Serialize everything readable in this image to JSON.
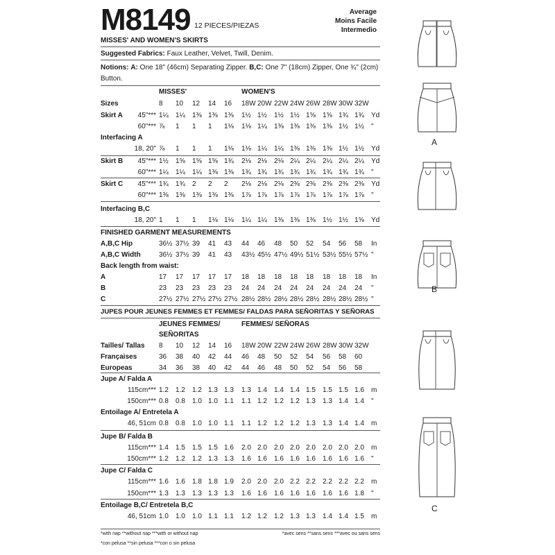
{
  "header": {
    "pattern_number": "M8149",
    "pieces": "12 PIECES/PIEZAS",
    "difficulty": [
      "Average",
      "Moins Facile",
      "Intermedio"
    ],
    "subtitle": "MISSES' AND WOMEN'S SKIRTS",
    "fabrics_label": "Suggested Fabrics:",
    "fabrics": "Faux Leather, Velvet, Twill, Denim.",
    "notions_label": "Notions:",
    "notions_a_label": "A:",
    "notions_a": "One 18\" (46cm) Separating Zipper.",
    "notions_bc_label": "B,C:",
    "notions_bc": "One 7\" (18cm) Zipper, One ¾\" (2cm)",
    "notions_cont": "Button."
  },
  "english": {
    "group_misses": "MISSES'",
    "group_womens": "WOMEN'S",
    "rows": [
      {
        "label": "Sizes",
        "sub": "",
        "values": [
          "8",
          "10",
          "12",
          "14",
          "16",
          "18W",
          "20W",
          "22W",
          "24W",
          "26W",
          "28W",
          "30W",
          "32W"
        ],
        "unit": ""
      },
      {
        "label": "Skirt A",
        "sub": "45\"***",
        "values": [
          "1¼",
          "1¼",
          "1⅜",
          "1⅜",
          "1⅜",
          "1½",
          "1½",
          "1½",
          "1½",
          "1⅝",
          "1⅝",
          "1¾",
          "1¾"
        ],
        "unit": "Yd"
      },
      {
        "label": "",
        "sub": "60\"***",
        "values": [
          "⅞",
          "1",
          "1",
          "1",
          "1⅛",
          "1⅛",
          "1¼",
          "1⅜",
          "1⅜",
          "1⅜",
          "1⅜",
          "1½",
          "1½"
        ],
        "unit": "\""
      },
      {
        "label": "Interfacing A",
        "sub": "",
        "values": [],
        "unit": ""
      },
      {
        "label": "",
        "sub": "18, 20\"",
        "values": [
          "⅞",
          "1",
          "1",
          "1",
          "1⅛",
          "1⅛",
          "1¼",
          "1¼",
          "1⅜",
          "1⅜",
          "1⅜",
          "1½",
          "1½"
        ],
        "unit": "Yd"
      },
      {
        "label": "Skirt B",
        "sub": "45\"***",
        "values": [
          "1½",
          "1⅝",
          "1⅝",
          "1⅝",
          "1¾",
          "2⅛",
          "2⅛",
          "2⅛",
          "2¼",
          "2¼",
          "2¼",
          "2¼",
          "2¼"
        ],
        "unit": "Yd"
      },
      {
        "label": "",
        "sub": "60\"***",
        "values": [
          "1¼",
          "1¼",
          "1¼",
          "1⅜",
          "1⅜",
          "1¾",
          "1¾",
          "1¾",
          "1¾",
          "1¾",
          "1¾",
          "1¾",
          "1¾"
        ],
        "unit": "\""
      },
      {
        "label": "Skirt C",
        "sub": "45\"***",
        "values": [
          "1¾",
          "1¾",
          "2",
          "2",
          "2",
          "2⅛",
          "2⅛",
          "2⅛",
          "2⅜",
          "2⅜",
          "2⅜",
          "2⅜",
          "2⅜"
        ],
        "unit": "Yd"
      },
      {
        "label": "",
        "sub": "60\"***",
        "values": [
          "1⅜",
          "1⅜",
          "1⅜",
          "1⅜",
          "1⅜",
          "1⅞",
          "1⅞",
          "1⅞",
          "1⅞",
          "1⅞",
          "1⅞",
          "1⅞",
          "1⅞"
        ],
        "unit": "\""
      },
      {
        "label": "Interfacing B,C",
        "sub": "",
        "values": [],
        "unit": ""
      },
      {
        "label": "",
        "sub": "18, 20\"",
        "values": [
          "1",
          "1",
          "1",
          "1⅛",
          "1⅛",
          "1¼",
          "1¼",
          "1⅜",
          "1⅜",
          "1⅜",
          "1½",
          "1½",
          "1⅝"
        ],
        "unit": "Yd"
      },
      {
        "label": "FINISHED GARMENT MEASUREMENTS",
        "sub": "",
        "values": [],
        "unit": ""
      },
      {
        "label": "A,B,C Hip",
        "sub": "",
        "values": [
          "36½",
          "37½",
          "39",
          "41",
          "43",
          "44",
          "46",
          "48",
          "50",
          "52",
          "54",
          "56",
          "58"
        ],
        "unit": "In"
      },
      {
        "label": "A,B,C Width",
        "sub": "",
        "values": [
          "36½",
          "37½",
          "39",
          "41",
          "43",
          "43½",
          "45½",
          "47½",
          "49½",
          "51½",
          "53½",
          "55½",
          "57½"
        ],
        "unit": "\""
      },
      {
        "label": "Back length from waist:",
        "sub": "",
        "values": [],
        "unit": ""
      },
      {
        "label": "A",
        "sub": "",
        "values": [
          "17",
          "17",
          "17",
          "17",
          "17",
          "18",
          "18",
          "18",
          "18",
          "18",
          "18",
          "18",
          "18"
        ],
        "unit": "In"
      },
      {
        "label": "B",
        "sub": "",
        "values": [
          "23",
          "23",
          "23",
          "23",
          "23",
          "24",
          "24",
          "24",
          "24",
          "24",
          "24",
          "24",
          "24"
        ],
        "unit": "\""
      },
      {
        "label": "C",
        "sub": "",
        "values": [
          "27½",
          "27½",
          "27½",
          "27½",
          "27½",
          "28½",
          "28½",
          "28½",
          "28½",
          "28½",
          "28½",
          "28½",
          "28½"
        ],
        "unit": "\""
      }
    ]
  },
  "metric": {
    "title": "JUPES POUR JEUNES FEMMES ET FEMMES/ FALDAS PARA SEÑORITAS Y SEÑORAS",
    "group_misses": [
      "JEUNES FEMMES/",
      "SEÑORITAS"
    ],
    "group_womens": "FEMMES/ SEÑORAS",
    "rows": [
      {
        "label": "Tailles/ Tallas",
        "sub": "",
        "values": [
          "8",
          "10",
          "12",
          "14",
          "16",
          "18W",
          "20W",
          "22W",
          "24W",
          "26W",
          "28W",
          "30W",
          "32W"
        ],
        "unit": ""
      },
      {
        "label": "Françaises",
        "sub": "",
        "values": [
          "36",
          "38",
          "40",
          "42",
          "44",
          "46",
          "48",
          "50",
          "52",
          "54",
          "56",
          "58",
          "60"
        ],
        "unit": ""
      },
      {
        "label": "Europeas",
        "sub": "",
        "values": [
          "34",
          "36",
          "38",
          "40",
          "42",
          "44",
          "46",
          "48",
          "50",
          "52",
          "54",
          "56",
          "58"
        ],
        "unit": ""
      },
      {
        "label": "Jupe A/ Falda A",
        "sub": "",
        "values": [],
        "unit": ""
      },
      {
        "label": "",
        "sub": "115cm***",
        "values": [
          "1.2",
          "1.2",
          "1.2",
          "1.3",
          "1.3",
          "1.3",
          "1.4",
          "1.4",
          "1.4",
          "1.5",
          "1.5",
          "1.5",
          "1.6"
        ],
        "unit": "m"
      },
      {
        "label": "",
        "sub": "150cm***",
        "values": [
          "0.8",
          "0.8",
          "1.0",
          "1.0",
          "1.1",
          "1.1",
          "1.2",
          "1.2",
          "1.2",
          "1.3",
          "1.3",
          "1.4",
          "1.4"
        ],
        "unit": "\""
      },
      {
        "label": "Entoilage A/ Entretela A",
        "sub": "",
        "values": [],
        "unit": ""
      },
      {
        "label": "",
        "sub": "46, 51cm",
        "values": [
          "0.8",
          "0.8",
          "1.0",
          "1.0",
          "1.1",
          "1.1",
          "1.2",
          "1.2",
          "1.2",
          "1.3",
          "1.3",
          "1.4",
          "1.4"
        ],
        "unit": "m"
      },
      {
        "label": "Jupe B/ Falda B",
        "sub": "",
        "values": [],
        "unit": ""
      },
      {
        "label": "",
        "sub": "115cm***",
        "values": [
          "1.4",
          "1.5",
          "1.5",
          "1.5",
          "1.6",
          "2.0",
          "2.0",
          "2.0",
          "2.0",
          "2.0",
          "2.0",
          "2.0",
          "2.0"
        ],
        "unit": "m"
      },
      {
        "label": "",
        "sub": "150cm***",
        "values": [
          "1.2",
          "1.2",
          "1.2",
          "1.3",
          "1.3",
          "1.6",
          "1.6",
          "1.6",
          "1.6",
          "1.6",
          "1.6",
          "1.6",
          "1.6"
        ],
        "unit": "\""
      },
      {
        "label": "Jupe C/ Falda C",
        "sub": "",
        "values": [],
        "unit": ""
      },
      {
        "label": "",
        "sub": "115cm***",
        "values": [
          "1.6",
          "1.6",
          "1.8",
          "1.8",
          "1.9",
          "2.0",
          "2.0",
          "2.0",
          "2.2",
          "2.2",
          "2.2",
          "2.2",
          "2.2"
        ],
        "unit": "m"
      },
      {
        "label": "",
        "sub": "150cm***",
        "values": [
          "1.3",
          "1.3",
          "1.3",
          "1.3",
          "1.3",
          "1.6",
          "1.6",
          "1.6",
          "1.6",
          "1.6",
          "1.6",
          "1.6",
          "1.8"
        ],
        "unit": "\""
      },
      {
        "label": "Entoilage B,C/ Entretela B,C",
        "sub": "",
        "values": [],
        "unit": ""
      },
      {
        "label": "",
        "sub": "46, 51cm",
        "values": [
          "1.0",
          "1.0",
          "1.0",
          "1.1",
          "1.1",
          "1.2",
          "1.2",
          "1.2",
          "1.3",
          "1.3",
          "1.4",
          "1.4",
          "1.5"
        ],
        "unit": "m"
      }
    ]
  },
  "footnotes": {
    "en": "*with nap  **without nap  ***with or without nap",
    "es": "*con pelusa  **sin pelusa  ***con o sin pelusa",
    "fr": "*avec sens  **sans sens  ***avec ou sans sens"
  },
  "views": [
    "A",
    "B",
    "C"
  ]
}
